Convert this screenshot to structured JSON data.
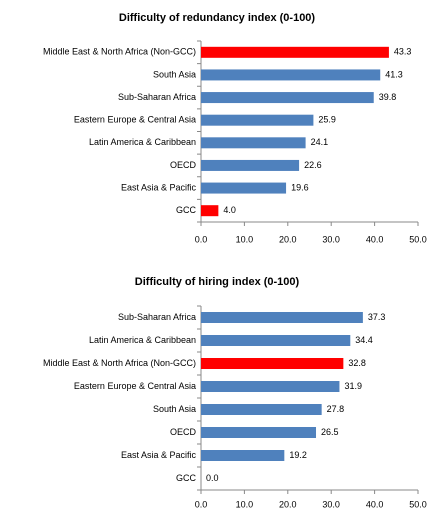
{
  "chart_data": [
    {
      "type": "barh",
      "title": "Difficulty of redundancy index (0-100)",
      "categories": [
        "Middle East & North Africa (Non-GCC)",
        "South Asia",
        "Sub-Saharan Africa",
        "Eastern Europe & Central Asia",
        "Latin America & Caribbean",
        "OECD",
        "East Asia & Pacific",
        "GCC"
      ],
      "values": [
        43.3,
        41.3,
        39.8,
        25.9,
        24.1,
        22.6,
        19.6,
        4.0
      ],
      "value_labels": [
        "43.3",
        "41.3",
        "39.8",
        "25.9",
        "24.1",
        "22.6",
        "19.6",
        "4.0"
      ],
      "colors": [
        "#ff0000",
        "#4f81bd",
        "#4f81bd",
        "#4f81bd",
        "#4f81bd",
        "#4f81bd",
        "#4f81bd",
        "#ff0000"
      ],
      "xlim": [
        0,
        50
      ],
      "xticks": [
        {
          "value": 0,
          "label": "0.0"
        },
        {
          "value": 10,
          "label": "10.0"
        },
        {
          "value": 20,
          "label": "20.0"
        },
        {
          "value": 30,
          "label": "30.0"
        },
        {
          "value": 40,
          "label": "40.0"
        },
        {
          "value": 50,
          "label": "50.0"
        }
      ]
    },
    {
      "type": "barh",
      "title": "Difficulty of hiring index (0-100)",
      "categories": [
        "Sub-Saharan Africa",
        "Latin America & Caribbean",
        "Middle East & North Africa (Non-GCC)",
        "Eastern Europe & Central Asia",
        "South Asia",
        "OECD",
        "East Asia & Pacific",
        "GCC"
      ],
      "values": [
        37.3,
        34.4,
        32.8,
        31.9,
        27.8,
        26.5,
        19.2,
        0.0
      ],
      "value_labels": [
        "37.3",
        "34.4",
        "32.8",
        "31.9",
        "27.8",
        "26.5",
        "19.2",
        "0.0"
      ],
      "colors": [
        "#4f81bd",
        "#4f81bd",
        "#ff0000",
        "#4f81bd",
        "#4f81bd",
        "#4f81bd",
        "#4f81bd",
        "#4f81bd"
      ],
      "xlim": [
        0,
        50
      ],
      "xticks": [
        {
          "value": 0,
          "label": "0.0"
        },
        {
          "value": 10,
          "label": "10.0"
        },
        {
          "value": 20,
          "label": "20.0"
        },
        {
          "value": 30,
          "label": "30.0"
        },
        {
          "value": 40,
          "label": "40.0"
        },
        {
          "value": 50,
          "label": "50.0"
        }
      ]
    }
  ]
}
